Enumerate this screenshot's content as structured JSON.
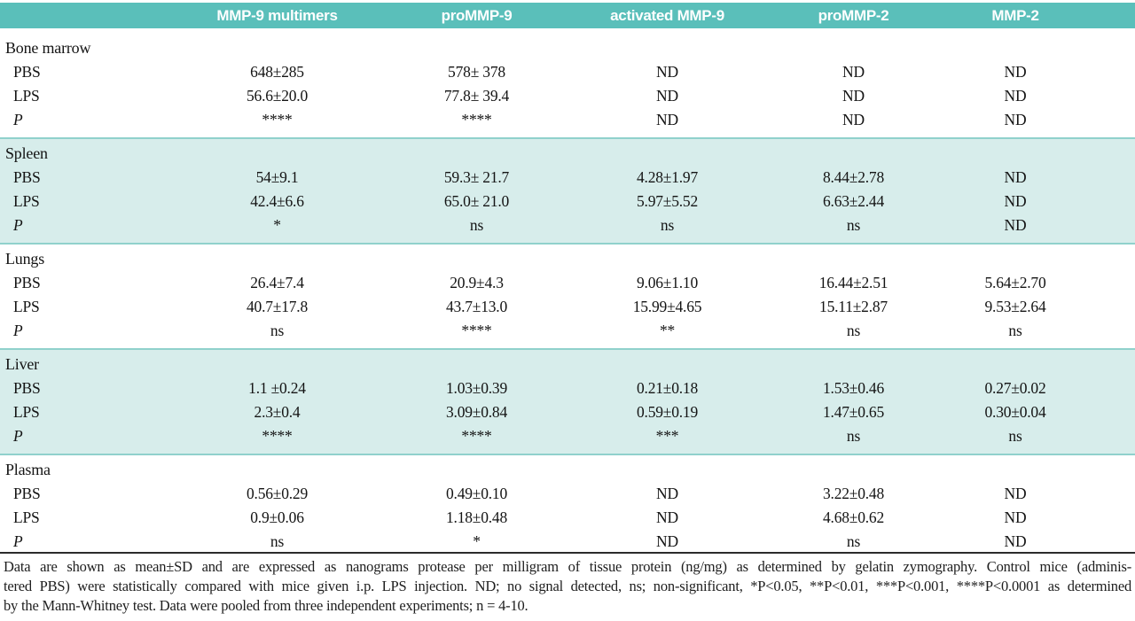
{
  "header": {
    "columns": [
      "MMP-9 multimers",
      "proMMP-9",
      "activated MMP-9",
      "proMMP-2",
      "MMP-2"
    ]
  },
  "table": {
    "sections": [
      {
        "name": "Bone marrow",
        "shaded": false,
        "rows": [
          {
            "label": "PBS",
            "values": [
              "648±285",
              "578± 378",
              "ND",
              "ND",
              "ND"
            ]
          },
          {
            "label": "LPS",
            "values": [
              "56.6±20.0",
              "77.8± 39.4",
              "ND",
              "ND",
              "ND"
            ]
          },
          {
            "label": "P",
            "values": [
              "****",
              "****",
              "ND",
              "ND",
              "ND"
            ]
          }
        ]
      },
      {
        "name": "Spleen",
        "shaded": true,
        "rows": [
          {
            "label": "PBS",
            "values": [
              "54±9.1",
              "59.3± 21.7",
              "4.28±1.97",
              "8.44±2.78",
              "ND"
            ]
          },
          {
            "label": "LPS",
            "values": [
              "42.4±6.6",
              "65.0± 21.0",
              "5.97±5.52",
              "6.63±2.44",
              "ND"
            ]
          },
          {
            "label": "P",
            "values": [
              "*",
              "ns",
              "ns",
              "ns",
              "ND"
            ]
          }
        ]
      },
      {
        "name": "Lungs",
        "shaded": false,
        "rows": [
          {
            "label": "PBS",
            "values": [
              "26.4±7.4",
              "20.9±4.3",
              "9.06±1.10",
              "16.44±2.51",
              "5.64±2.70"
            ]
          },
          {
            "label": "LPS",
            "values": [
              "40.7±17.8",
              "43.7±13.0",
              "15.99±4.65",
              "15.11±2.87",
              "9.53±2.64"
            ]
          },
          {
            "label": "P",
            "values": [
              "ns",
              "****",
              "**",
              "ns",
              "ns"
            ]
          }
        ]
      },
      {
        "name": "Liver",
        "shaded": true,
        "rows": [
          {
            "label": "PBS",
            "values": [
              "1.1 ±0.24",
              "1.03±0.39",
              "0.21±0.18",
              "1.53±0.46",
              "0.27±0.02"
            ]
          },
          {
            "label": "LPS",
            "values": [
              "2.3±0.4",
              "3.09±0.84",
              "0.59±0.19",
              "1.47±0.65",
              "0.30±0.04"
            ]
          },
          {
            "label": "P",
            "values": [
              "****",
              "****",
              "***",
              "ns",
              "ns"
            ]
          }
        ]
      },
      {
        "name": "Plasma",
        "shaded": false,
        "rows": [
          {
            "label": "PBS",
            "values": [
              "0.56±0.29",
              "0.49±0.10",
              "ND",
              "3.22±0.48",
              "ND"
            ]
          },
          {
            "label": "LPS",
            "values": [
              "0.9±0.06",
              "1.18±0.48",
              "ND",
              "4.68±0.62",
              "ND"
            ]
          },
          {
            "label": "P",
            "values": [
              "ns",
              "*",
              "ND",
              "ns",
              "ND"
            ]
          }
        ]
      }
    ]
  },
  "footnote": {
    "lines": [
      "Data are shown as mean±SD and are expressed as nanograms protease per milligram of tissue protein (ng/mg) as determined by gelatin zymography. Control mice (adminis-",
      "tered PBS) were statistically compared with mice given i.p. LPS injection. ND; no signal detected, ns; non-significant, *P<0.05, **P<0.01, ***P<0.001, ****P<0.0001 as determined",
      "by the Mann-Whitney test. Data were pooled from three independent experiments; n = 4-10."
    ]
  },
  "colors": {
    "header_teal": "#5abfba",
    "band_teal": "#d7edeb",
    "band_edge": "#90d1cc",
    "header_text": "#ffffff"
  }
}
